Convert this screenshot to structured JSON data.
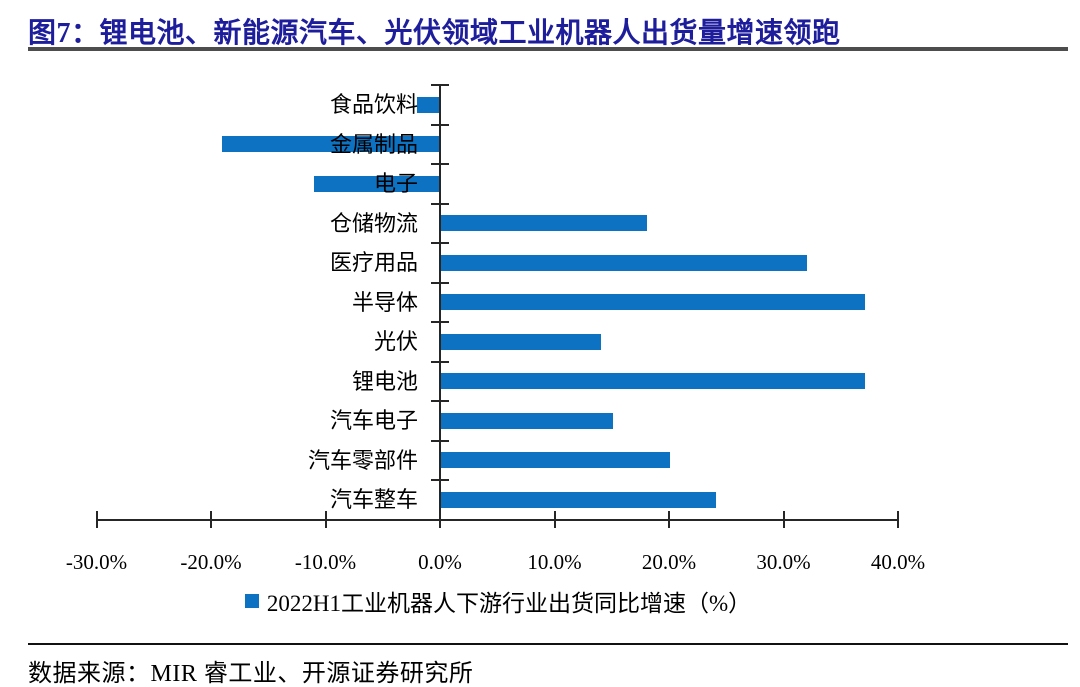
{
  "header": {
    "title": "图7：锂电池、新能源汽车、光伏领域工业机器人出货量增速领跑"
  },
  "chart_data": {
    "type": "bar",
    "orientation": "horizontal",
    "series_name": "2022H1工业机器人下游行业出货同比增速（%）",
    "categories": [
      "食品饮料",
      "金属制品",
      "电子",
      "仓储物流",
      "医疗用品",
      "半导体",
      "光伏",
      "锂电池",
      "汽车电子",
      "汽车零部件",
      "汽车整车"
    ],
    "values": [
      -2,
      -19,
      -11,
      18,
      32,
      37,
      14,
      37,
      15,
      20,
      24
    ],
    "unit": "%",
    "xlim": [
      -30,
      40
    ],
    "x_ticks": [
      -30,
      -20,
      -10,
      0,
      10,
      20,
      30,
      40
    ],
    "x_tick_labels": [
      "-30.0%",
      "-20.0%",
      "-10.0%",
      "0.0%",
      "10.0%",
      "20.0%",
      "30.0%",
      "40.0%"
    ],
    "bar_color": "#0E72C2",
    "grid": false,
    "legend_position": "bottom"
  },
  "legend": {
    "label": "2022H1工业机器人下游行业出货同比增速（%）"
  },
  "footer": {
    "source": "数据来源：MIR 睿工业、开源证券研究所"
  },
  "colors": {
    "title": "#1E1E9C",
    "bar": "#0E72C2",
    "axis": "#262626",
    "title_rule": "#4D4D4D",
    "footer_rule": "#111111"
  }
}
